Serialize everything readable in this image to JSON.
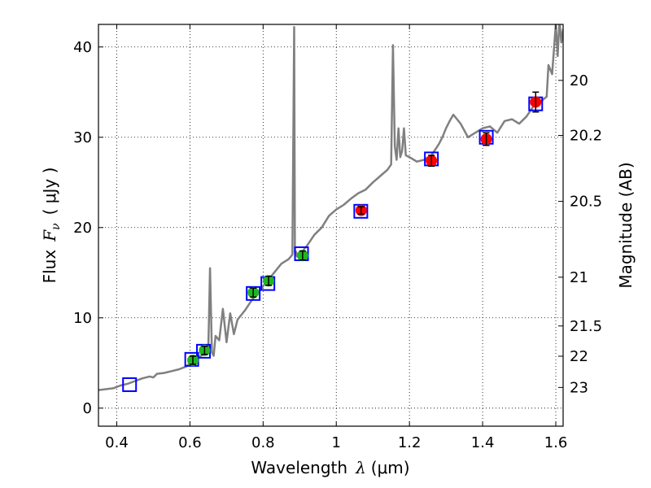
{
  "chart_data": {
    "type": "scatter",
    "xlabel": {
      "text": "Wavelength",
      "symbol": "λ",
      "unit": "(μm)"
    },
    "ylabel": {
      "text": "Flux",
      "symbol": "F",
      "subscript": "ν",
      "unit": "( μJy )"
    },
    "y2label": "Magnitude (AB)",
    "xlim": [
      0.35,
      1.62
    ],
    "ylim": [
      -2,
      42.5
    ],
    "grid": true,
    "x_ticks": [
      0.4,
      0.6,
      0.8,
      1.0,
      1.2,
      1.4,
      1.6
    ],
    "x_tick_labels": [
      "0.4",
      "0.6",
      "0.8",
      "1",
      "1.2",
      "1.4",
      "1.6"
    ],
    "y_ticks": [
      0,
      10,
      20,
      30,
      40
    ],
    "y_tick_labels": [
      "0",
      "10",
      "20",
      "30",
      "40"
    ],
    "y2_ticks": [
      {
        "label": "20",
        "flux": 36.3
      },
      {
        "label": "20.2",
        "flux": 30.2
      },
      {
        "label": "20.5",
        "flux": 22.9
      },
      {
        "label": "21",
        "flux": 14.5
      },
      {
        "label": "21.5",
        "flux": 9.1
      },
      {
        "label": "22",
        "flux": 5.75
      },
      {
        "label": "23",
        "flux": 2.29
      }
    ],
    "series": [
      {
        "type": "line",
        "color": "#808080",
        "x": [
          0.35,
          0.37,
          0.39,
          0.41,
          0.43,
          0.45,
          0.47,
          0.49,
          0.5,
          0.51,
          0.53,
          0.55,
          0.57,
          0.59,
          0.6,
          0.62,
          0.64,
          0.65,
          0.655,
          0.66,
          0.665,
          0.67,
          0.68,
          0.69,
          0.7,
          0.71,
          0.72,
          0.73,
          0.75,
          0.77,
          0.79,
          0.81,
          0.83,
          0.85,
          0.87,
          0.88,
          0.885,
          0.887,
          0.89,
          0.893,
          0.9,
          0.92,
          0.94,
          0.96,
          0.98,
          1.0,
          1.02,
          1.04,
          1.06,
          1.08,
          1.1,
          1.12,
          1.14,
          1.15,
          1.155,
          1.16,
          1.165,
          1.17,
          1.175,
          1.18,
          1.185,
          1.19,
          1.2,
          1.22,
          1.24,
          1.26,
          1.28,
          1.29,
          1.3,
          1.31,
          1.32,
          1.34,
          1.36,
          1.38,
          1.4,
          1.42,
          1.44,
          1.46,
          1.48,
          1.5,
          1.52,
          1.54,
          1.56,
          1.575,
          1.58,
          1.59,
          1.6,
          1.605,
          1.61,
          1.615,
          1.62
        ],
        "y": [
          2.0,
          2.1,
          2.2,
          2.5,
          2.7,
          3.0,
          3.3,
          3.5,
          3.4,
          3.8,
          3.9,
          4.1,
          4.3,
          4.6,
          5.0,
          5.6,
          6.0,
          6.2,
          15.5,
          6.2,
          5.8,
          8.0,
          7.5,
          11.0,
          7.3,
          10.5,
          8.2,
          9.8,
          10.8,
          12.0,
          13.0,
          14.0,
          15.0,
          16.0,
          16.5,
          17.0,
          42.2,
          17.2,
          17.3,
          16.8,
          17.0,
          18.0,
          19.2,
          20.0,
          21.3,
          22.0,
          22.5,
          23.2,
          23.8,
          24.2,
          25.0,
          25.7,
          26.4,
          27.0,
          40.2,
          29.0,
          27.5,
          31.0,
          27.8,
          28.5,
          31.0,
          28.0,
          27.8,
          27.3,
          27.5,
          28.0,
          29.2,
          30.0,
          31.0,
          31.8,
          32.5,
          31.5,
          30.0,
          30.5,
          31.0,
          31.2,
          30.5,
          31.8,
          32.0,
          31.5,
          32.3,
          33.5,
          34.0,
          34.5,
          38.0,
          37.0,
          42.5,
          39.0,
          43.0,
          40.5,
          42.0
        ]
      },
      {
        "type": "scatter",
        "marker": "square",
        "facecolor": "none",
        "edgecolor": "#0000ff",
        "x": [
          0.435,
          0.605,
          0.637,
          0.773,
          0.813,
          0.905,
          1.067,
          1.26,
          1.41,
          1.545
        ],
        "y": [
          2.6,
          5.4,
          6.3,
          12.7,
          13.8,
          17.1,
          21.8,
          27.6,
          30.0,
          33.7
        ]
      },
      {
        "type": "errorbar",
        "marker": "circle",
        "color": "#22b522",
        "x": [
          0.608,
          0.64,
          0.773,
          0.815,
          0.908
        ],
        "y": [
          5.3,
          6.4,
          12.8,
          14.1,
          16.9
        ],
        "yerr": [
          0.45,
          0.45,
          0.5,
          0.5,
          0.5
        ]
      },
      {
        "type": "errorbar",
        "marker": "circle",
        "color": "#ff0000",
        "x": [
          1.068,
          1.26,
          1.41,
          1.545
        ],
        "y": [
          21.9,
          27.4,
          29.8,
          33.9
        ],
        "yerr": [
          0.4,
          0.6,
          0.7,
          1.1
        ]
      }
    ]
  }
}
